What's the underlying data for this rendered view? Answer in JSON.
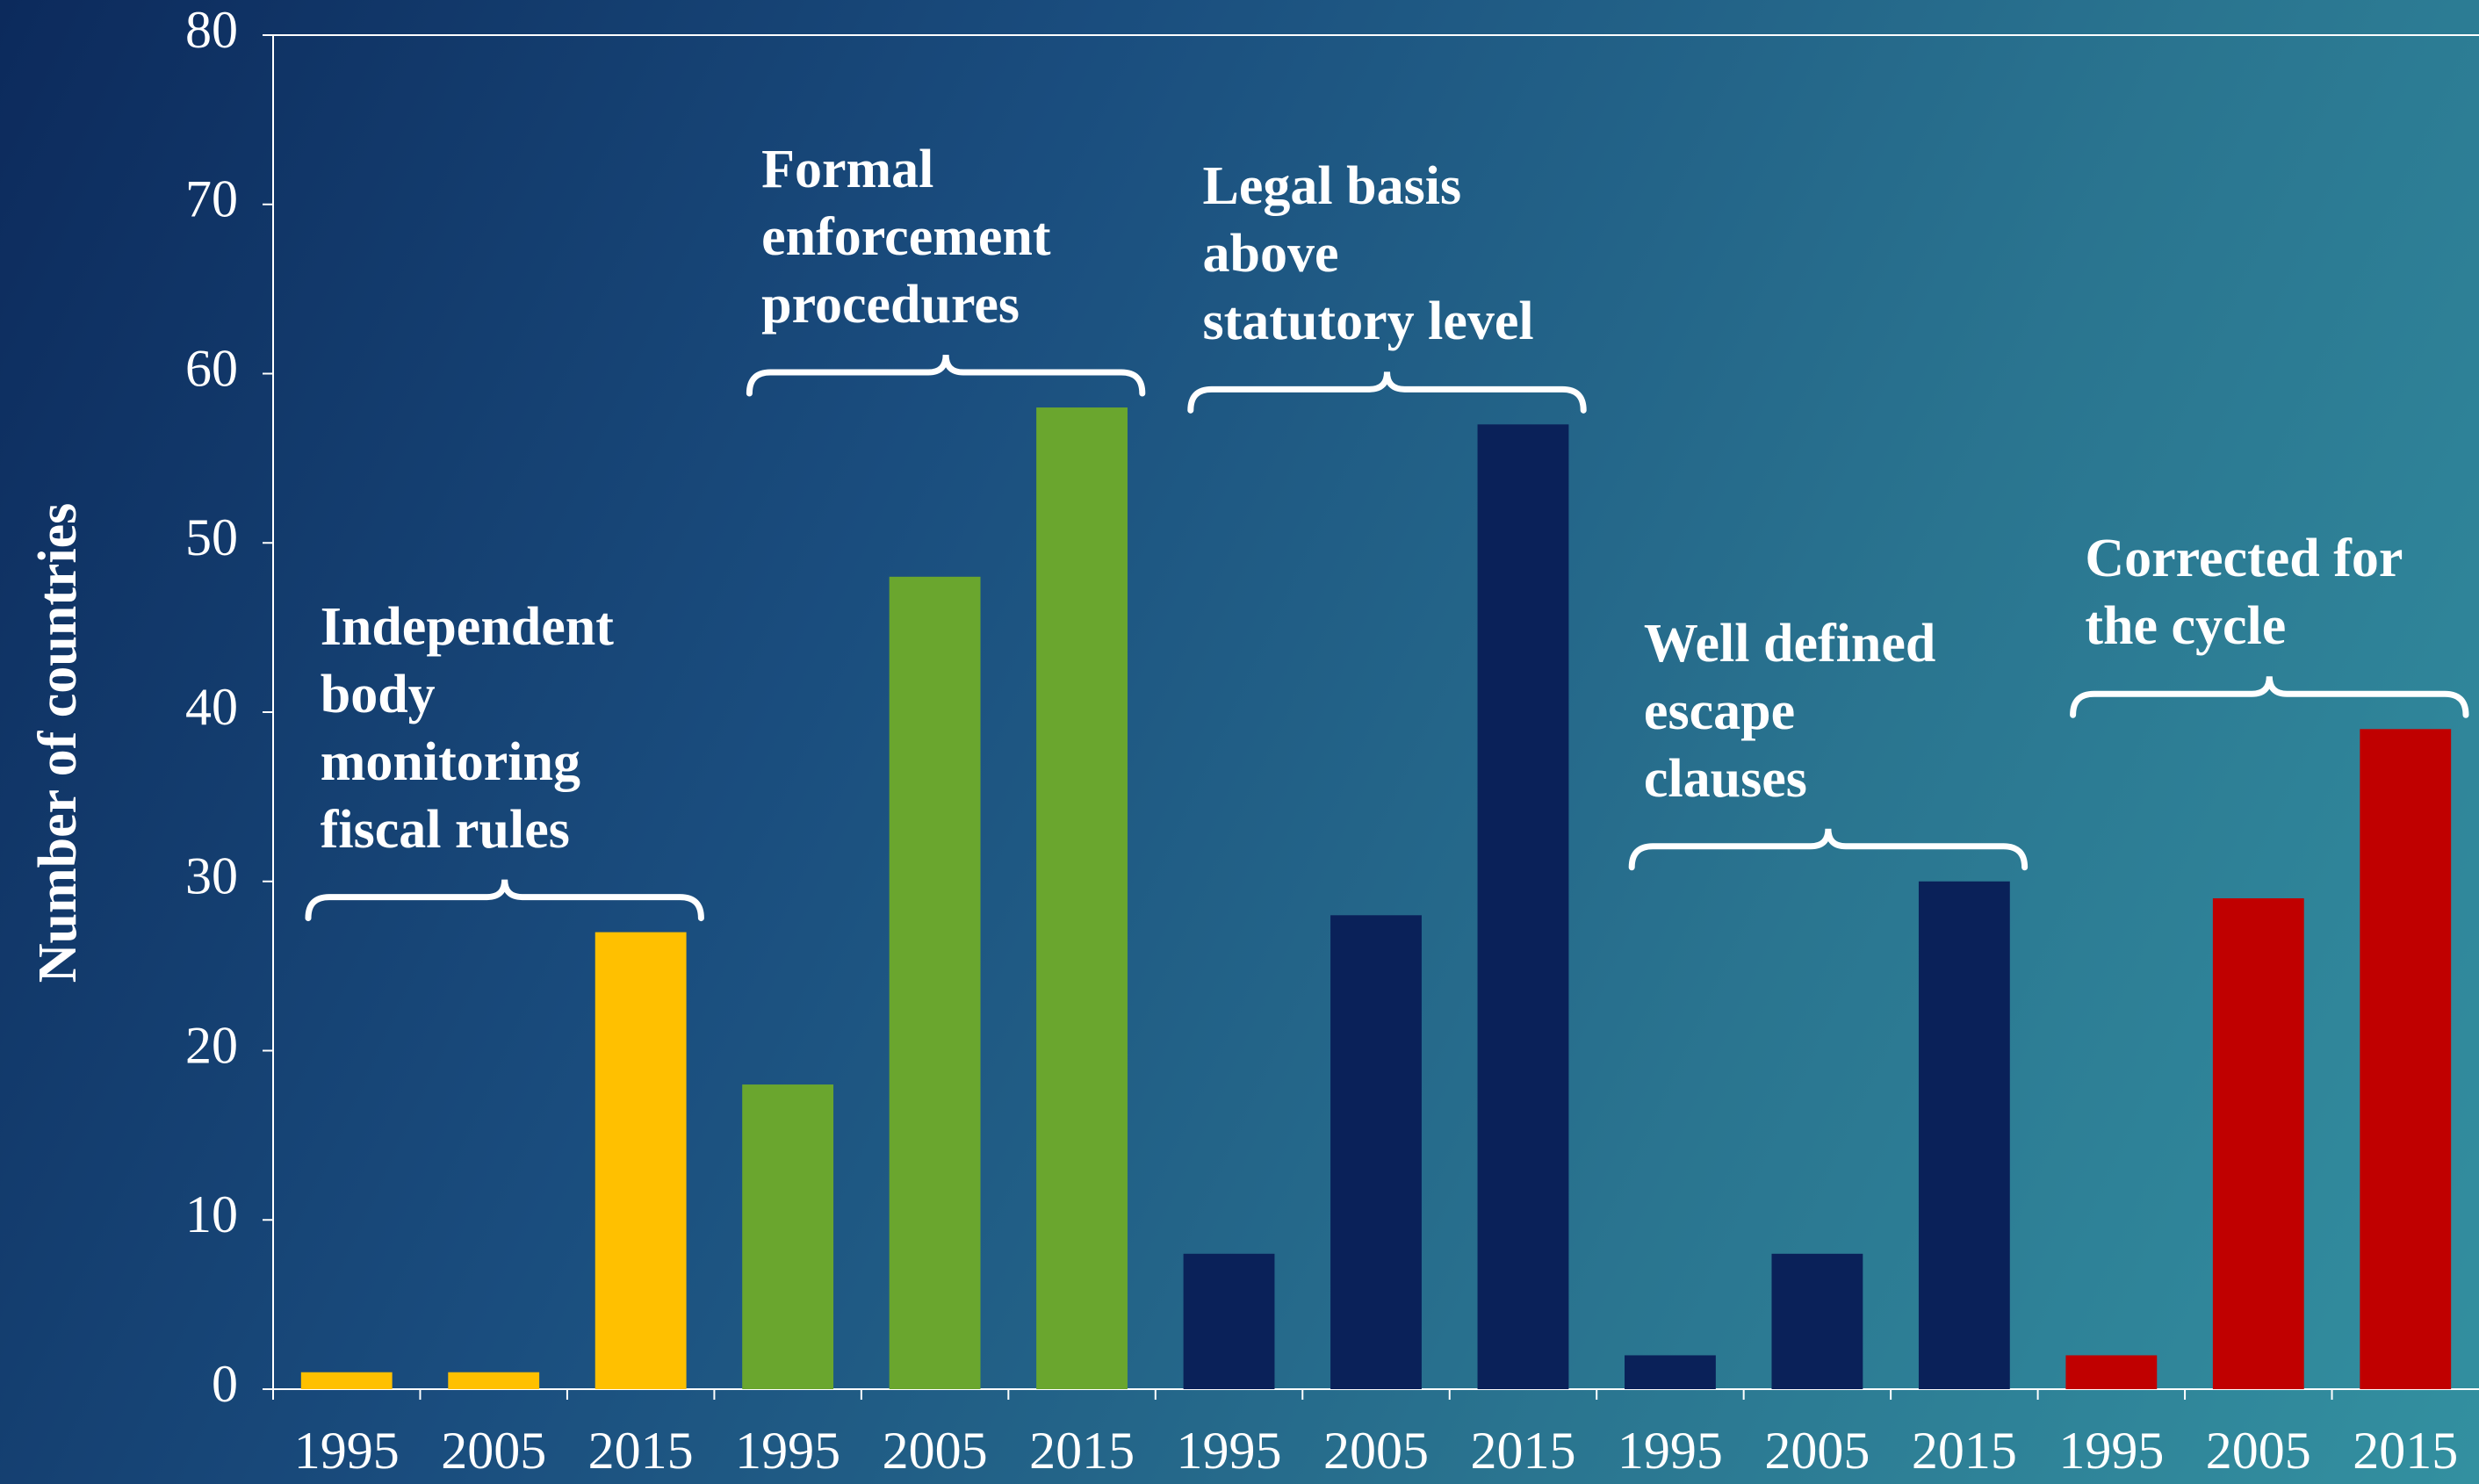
{
  "chart_data": {
    "type": "bar",
    "ylabel": "Number of countries",
    "ylim": [
      0,
      80
    ],
    "yticks": [
      0,
      10,
      20,
      30,
      40,
      50,
      60,
      70,
      80
    ],
    "groups": [
      {
        "name": "Independent\nbody\nmonitoring\nfiscal rules",
        "color": "#ffc000",
        "categories": [
          "1995",
          "2005",
          "2015"
        ],
        "values": [
          1,
          1,
          27
        ]
      },
      {
        "name": "Formal\nenforcement\nprocedures",
        "color": "#6aa62e",
        "categories": [
          "1995",
          "2005",
          "2015"
        ],
        "values": [
          18,
          48,
          58
        ]
      },
      {
        "name": "Legal basis\nabove\nstatutory level",
        "color": "#0a2159",
        "categories": [
          "1995",
          "2005",
          "2015"
        ],
        "values": [
          8,
          28,
          57
        ]
      },
      {
        "name": "Well defined\nescape\nclauses",
        "color": "#0a2159",
        "categories": [
          "1995",
          "2005",
          "2015"
        ],
        "values": [
          2,
          8,
          30
        ]
      },
      {
        "name": "Corrected for\nthe cycle",
        "color": "#c00000",
        "categories": [
          "1995",
          "2005",
          "2015"
        ],
        "values": [
          2,
          29,
          39
        ]
      }
    ]
  }
}
